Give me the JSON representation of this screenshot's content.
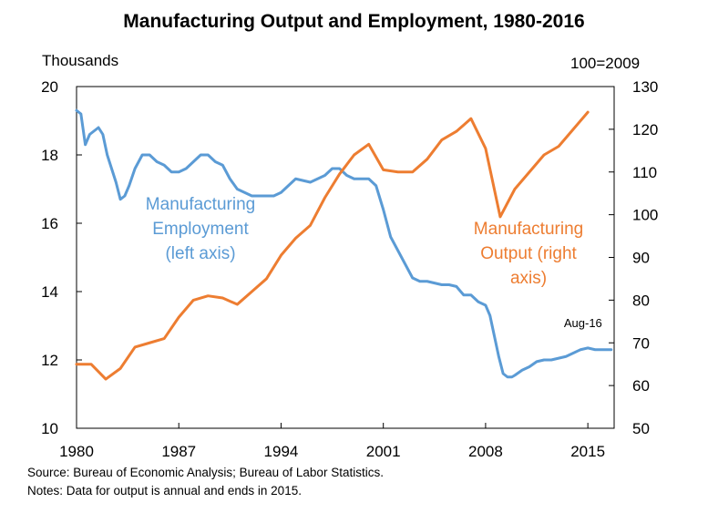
{
  "chart_data": {
    "type": "line",
    "title": "Manufacturing Output and Employment, 1980-2016",
    "left_axis_unit": "Thousands",
    "right_axis_unit": "100=2009",
    "xlim": [
      1980,
      2016.8
    ],
    "x_ticks": [
      1980,
      1987,
      1994,
      2001,
      2008,
      2015
    ],
    "x_tick_labels": [
      "1980",
      "1987",
      "1994",
      "2001",
      "2008",
      "2015"
    ],
    "ylim_left": [
      10,
      20
    ],
    "y_ticks_left": [
      10,
      12,
      14,
      16,
      18,
      20
    ],
    "ylim_right": [
      50,
      130
    ],
    "y_ticks_right": [
      50,
      60,
      70,
      80,
      90,
      100,
      110,
      120,
      130
    ],
    "grid": false,
    "series": [
      {
        "name": "Manufacturing Employment (left axis)",
        "label_lines": [
          "Manufacturing",
          "Employment",
          "(left axis)"
        ],
        "axis": "left",
        "color": "#5b9bd5",
        "x": [
          1980.0,
          1980.3,
          1980.6,
          1980.9,
          1981.2,
          1981.5,
          1981.8,
          1982.1,
          1982.4,
          1982.7,
          1983.0,
          1983.3,
          1983.6,
          1984.0,
          1984.5,
          1985.0,
          1985.5,
          1986.0,
          1986.5,
          1987.0,
          1987.5,
          1988.0,
          1988.5,
          1989.0,
          1989.5,
          1990.0,
          1990.5,
          1991.0,
          1991.5,
          1992.0,
          1992.5,
          1993.0,
          1993.5,
          1994.0,
          1994.5,
          1995.0,
          1995.5,
          1996.0,
          1996.5,
          1997.0,
          1997.5,
          1998.0,
          1998.5,
          1999.0,
          1999.5,
          2000.0,
          2000.5,
          2001.0,
          2001.5,
          2002.0,
          2002.5,
          2003.0,
          2003.5,
          2004.0,
          2004.5,
          2005.0,
          2005.5,
          2006.0,
          2006.5,
          2007.0,
          2007.5,
          2008.0,
          2008.3,
          2008.6,
          2008.9,
          2009.2,
          2009.5,
          2009.8,
          2010.0,
          2010.5,
          2011.0,
          2011.5,
          2012.0,
          2012.5,
          2013.0,
          2013.5,
          2014.0,
          2014.5,
          2015.0,
          2015.5,
          2016.0,
          2016.6
        ],
        "values": [
          19.3,
          19.2,
          18.3,
          18.6,
          18.7,
          18.8,
          18.6,
          18.0,
          17.6,
          17.2,
          16.7,
          16.8,
          17.1,
          17.6,
          18.0,
          18.0,
          17.8,
          17.7,
          17.5,
          17.5,
          17.6,
          17.8,
          18.0,
          18.0,
          17.8,
          17.7,
          17.3,
          17.0,
          16.9,
          16.8,
          16.8,
          16.8,
          16.8,
          16.9,
          17.1,
          17.3,
          17.25,
          17.2,
          17.3,
          17.4,
          17.6,
          17.6,
          17.4,
          17.3,
          17.3,
          17.3,
          17.1,
          16.4,
          15.6,
          15.2,
          14.8,
          14.4,
          14.3,
          14.3,
          14.25,
          14.2,
          14.2,
          14.15,
          13.9,
          13.9,
          13.7,
          13.6,
          13.3,
          12.7,
          12.1,
          11.6,
          11.5,
          11.5,
          11.55,
          11.7,
          11.8,
          11.95,
          12.0,
          12.0,
          12.05,
          12.1,
          12.2,
          12.3,
          12.35,
          12.3,
          12.3,
          12.3
        ]
      },
      {
        "name": "Manufacturing Output (right axis)",
        "label_lines": [
          "Manufacturing",
          "Output (right",
          "axis)"
        ],
        "axis": "right",
        "color": "#ed7d31",
        "x": [
          1980,
          1981,
          1982,
          1983,
          1984,
          1985,
          1986,
          1987,
          1988,
          1989,
          1990,
          1991,
          1992,
          1993,
          1994,
          1995,
          1996,
          1997,
          1998,
          1999,
          2000,
          2001,
          2002,
          2003,
          2004,
          2005,
          2006,
          2007,
          2008,
          2009,
          2010,
          2011,
          2012,
          2013,
          2014,
          2015
        ],
        "values": [
          65,
          65,
          61.5,
          64,
          69,
          70,
          71,
          76,
          80,
          81,
          80.5,
          79,
          82,
          85,
          90.5,
          94.5,
          97.5,
          104,
          109.5,
          114,
          116.5,
          110.5,
          110,
          110,
          113,
          117.5,
          119.5,
          122.5,
          115.5,
          99.5,
          106,
          110,
          114,
          116,
          120,
          124
        ]
      }
    ],
    "annotations": [
      {
        "text": "Aug-16",
        "x": 2016.6,
        "value": 12.3,
        "axis": "left"
      }
    ]
  },
  "notes": {
    "source": "Source: Bureau of Economic Analysis; Bureau of Labor Statistics.",
    "notes": "Notes:  Data for output is annual and ends in 2015."
  }
}
